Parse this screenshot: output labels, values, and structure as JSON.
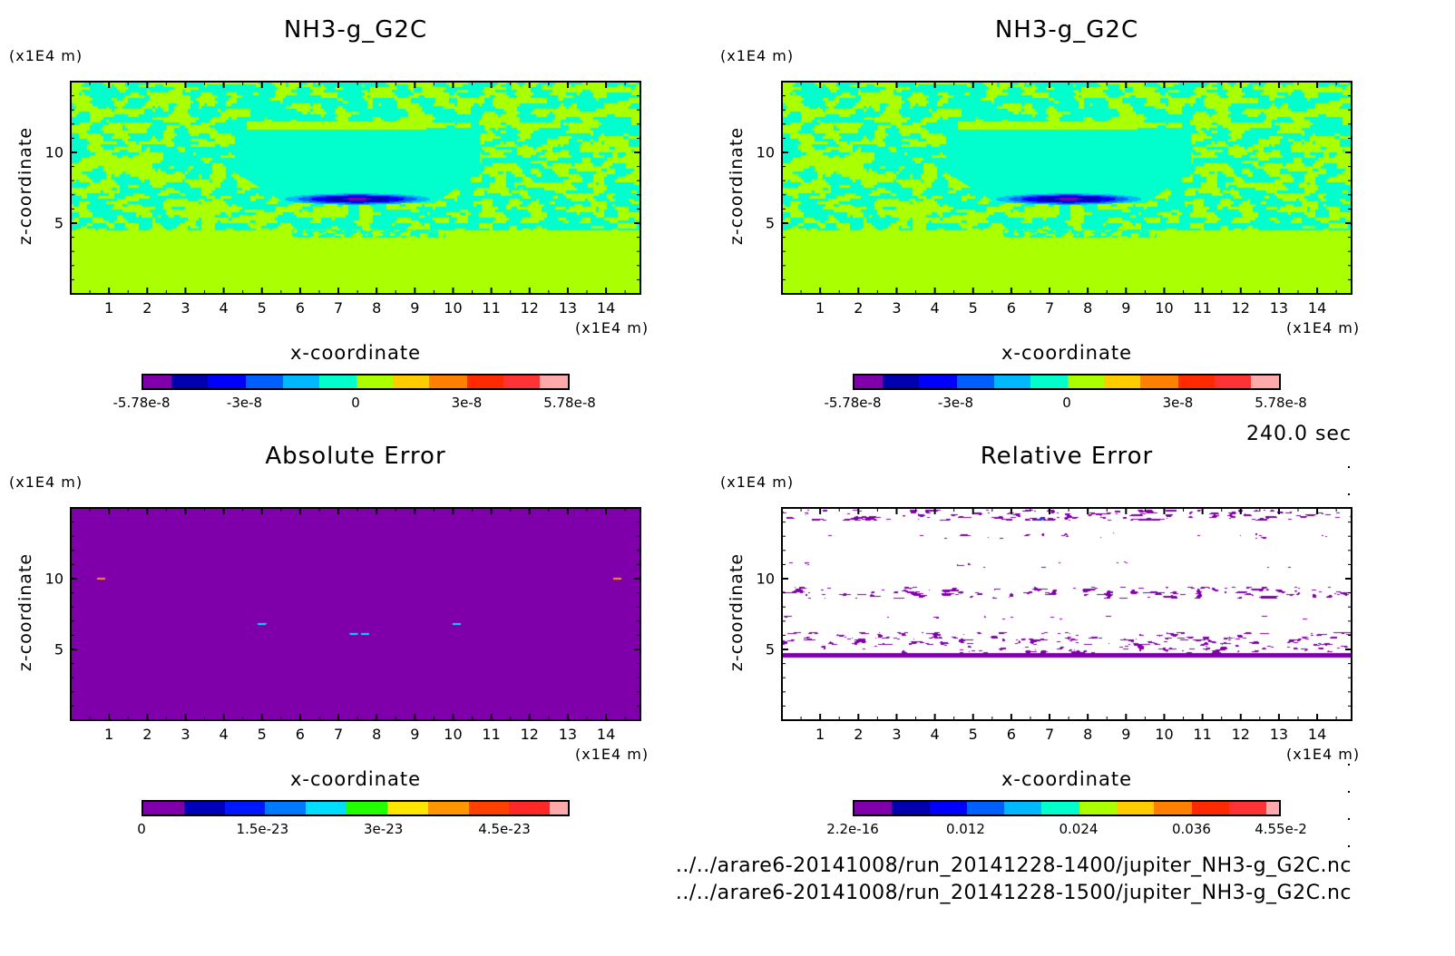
{
  "time_label": "240.0 sec",
  "file_paths": [
    "../../arare6-20141008/run_20141228-1400/jupiter_NH3-g_G2C.nc",
    "../../arare6-20141008/run_20141228-1500/jupiter_NH3-g_G2C.nc"
  ],
  "chart_data": [
    {
      "type": "heatmap",
      "field": "model",
      "title": "NH3-g_G2C",
      "xlabel": "x-coordinate",
      "ylabel": "z-coordinate",
      "x_unit": "(x1E4 m)",
      "y_unit": "(x1E4 m)",
      "xlim": [
        0,
        14.9
      ],
      "ylim": [
        0,
        15
      ],
      "x_ticks": [
        1,
        2,
        3,
        4,
        5,
        6,
        7,
        8,
        9,
        10,
        11,
        12,
        13,
        14
      ],
      "y_ticks": [
        5,
        10
      ],
      "colorbar": {
        "range": [
          -5.78e-08,
          5.78e-08
        ],
        "colors": [
          "#7f00aa",
          "#0000b0",
          "#0000ff",
          "#0060ff",
          "#00b8ff",
          "#00ffcc",
          "#aaff00",
          "#ffcc00",
          "#ff7f00",
          "#ff2a00",
          "#ff3333",
          "#ffaaaa"
        ],
        "ticks": [
          {
            "value": -5.78e-08,
            "label": "-5.78e-8"
          },
          {
            "value": -3e-08,
            "label": "-3e-8"
          },
          {
            "value": 0,
            "label": "0"
          },
          {
            "value": 3e-08,
            "label": "3e-8"
          },
          {
            "value": 5.78e-08,
            "label": "5.78e-8"
          }
        ]
      }
    },
    {
      "type": "heatmap",
      "field": "model",
      "title": "NH3-g_G2C",
      "xlabel": "x-coordinate",
      "ylabel": "z-coordinate",
      "x_unit": "(x1E4 m)",
      "y_unit": "(x1E4 m)",
      "xlim": [
        0,
        14.9
      ],
      "ylim": [
        0,
        15
      ],
      "x_ticks": [
        1,
        2,
        3,
        4,
        5,
        6,
        7,
        8,
        9,
        10,
        11,
        12,
        13,
        14
      ],
      "y_ticks": [
        5,
        10
      ],
      "colorbar": {
        "range": [
          -5.78e-08,
          5.78e-08
        ],
        "colors": [
          "#7f00aa",
          "#0000b0",
          "#0000ff",
          "#0060ff",
          "#00b8ff",
          "#00ffcc",
          "#aaff00",
          "#ffcc00",
          "#ff7f00",
          "#ff2a00",
          "#ff3333",
          "#ffaaaa"
        ],
        "ticks": [
          {
            "value": -5.78e-08,
            "label": "-5.78e-8"
          },
          {
            "value": -3e-08,
            "label": "-3e-8"
          },
          {
            "value": 0,
            "label": "0"
          },
          {
            "value": 3e-08,
            "label": "3e-8"
          },
          {
            "value": 5.78e-08,
            "label": "5.78e-8"
          }
        ]
      }
    },
    {
      "type": "heatmap",
      "field": "absolute",
      "title": "Absolute Error",
      "xlabel": "x-coordinate",
      "ylabel": "z-coordinate",
      "x_unit": "(x1E4 m)",
      "y_unit": "(x1E4 m)",
      "xlim": [
        0,
        14.9
      ],
      "ylim": [
        0,
        15
      ],
      "x_ticks": [
        1,
        2,
        3,
        4,
        5,
        6,
        7,
        8,
        9,
        10,
        11,
        12,
        13,
        14
      ],
      "y_ticks": [
        5,
        10
      ],
      "colorbar": {
        "range": [
          0,
          5.31e-23
        ],
        "colors": [
          "#7f00aa",
          "#0000bb",
          "#0018ff",
          "#0078ff",
          "#00ddff",
          "#22ff00",
          "#ffe600",
          "#ff9600",
          "#ff4000",
          "#ff2828",
          "#ffaaaa"
        ],
        "ticks": [
          {
            "value": 0,
            "label": "0"
          },
          {
            "value": 1.5e-23,
            "label": "1.5e-23"
          },
          {
            "value": 3e-23,
            "label": "3e-23"
          },
          {
            "value": 4.5e-23,
            "label": "4.5e-23"
          }
        ]
      }
    },
    {
      "type": "heatmap",
      "field": "relative",
      "title": "Relative Error",
      "xlabel": "x-coordinate",
      "ylabel": "z-coordinate",
      "x_unit": "(x1E4 m)",
      "y_unit": "(x1E4 m)",
      "xlim": [
        0,
        14.9
      ],
      "ylim": [
        0,
        15
      ],
      "x_ticks": [
        1,
        2,
        3,
        4,
        5,
        6,
        7,
        8,
        9,
        10,
        11,
        12,
        13,
        14
      ],
      "y_ticks": [
        5,
        10
      ],
      "colorbar": {
        "range": [
          0,
          0.0455
        ],
        "colors": [
          "#7f00aa",
          "#0000b0",
          "#0000ff",
          "#0060ff",
          "#00b8ff",
          "#00ffcc",
          "#aaff00",
          "#ffcc00",
          "#ff7f00",
          "#ff2a00",
          "#ff3333",
          "#ffaaaa"
        ],
        "ticks": [
          {
            "value": 0,
            "label": "2.2e-16"
          },
          {
            "value": 0.012,
            "label": "0.012"
          },
          {
            "value": 0.024,
            "label": "0.024"
          },
          {
            "value": 0.036,
            "label": "0.036"
          },
          {
            "value": 0.0455,
            "label": "4.55e-2"
          }
        ]
      }
    }
  ]
}
